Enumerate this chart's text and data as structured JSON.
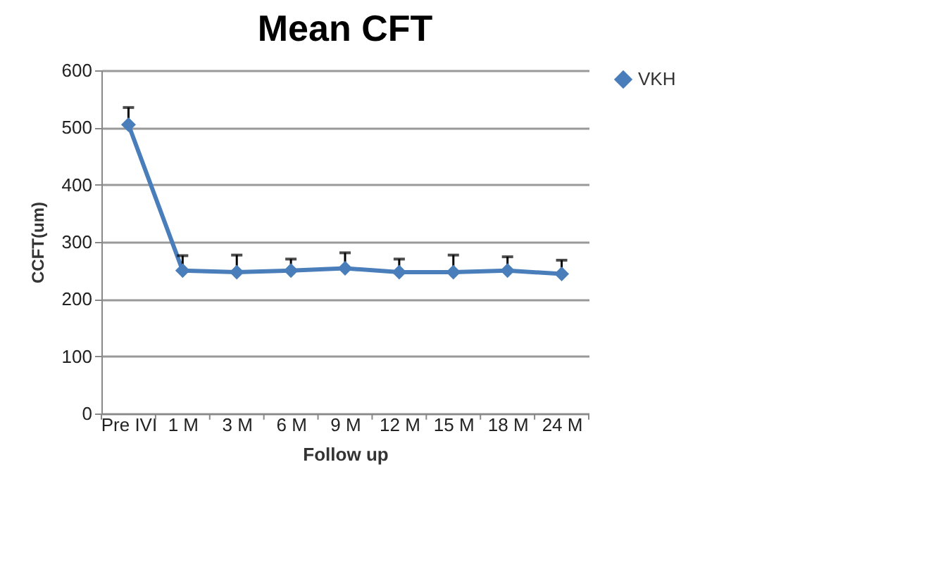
{
  "chart_data": {
    "type": "line",
    "title": "Mean CFT",
    "xlabel": "Follow up",
    "ylabel": "CCFT(um)",
    "categories": [
      "Pre IVI",
      "1 M",
      "3 M",
      "6 M",
      "9 M",
      "12 M",
      "15 M",
      "18 M",
      "24 M"
    ],
    "series": [
      {
        "name": "VKH",
        "color": "#4a7ebb",
        "values": [
          505,
          250,
          247,
          250,
          254,
          247,
          247,
          250,
          244
        ],
        "errors": [
          [
            505,
            535
          ],
          [
            250,
            276
          ],
          [
            247,
            277
          ],
          [
            250,
            270
          ],
          [
            254,
            281
          ],
          [
            247,
            270
          ],
          [
            247,
            277
          ],
          [
            250,
            274
          ],
          [
            244,
            268
          ]
        ]
      }
    ],
    "ylim": [
      0,
      600
    ],
    "yticks": [
      0,
      100,
      200,
      300,
      400,
      500,
      600
    ],
    "grid": "y",
    "legend": "right",
    "marker": "diamond",
    "line_style": "solid"
  }
}
